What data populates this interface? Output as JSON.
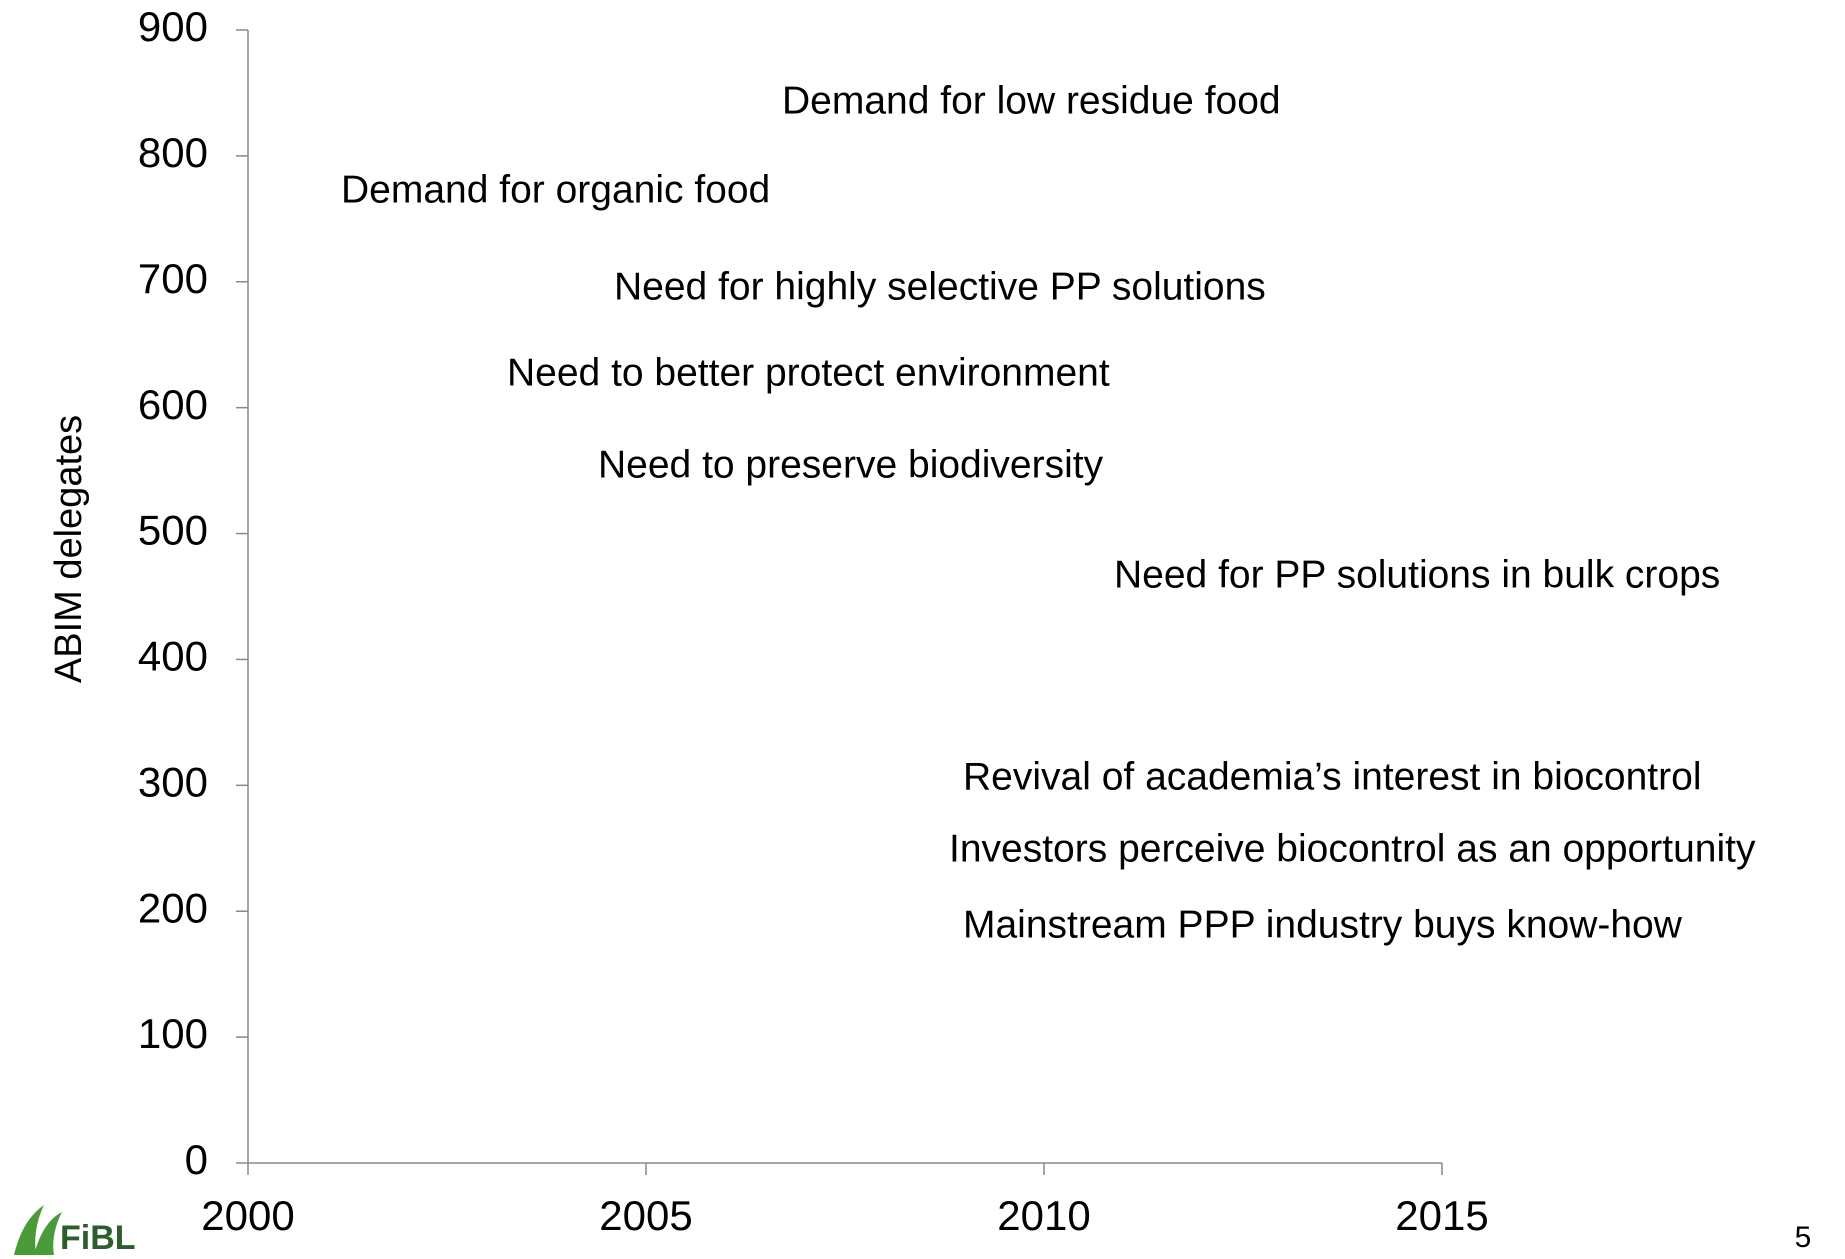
{
  "chart_data": {
    "type": "line",
    "ylabel": "ABIM delegates",
    "xlim": [
      2000,
      2015
    ],
    "xticks": [
      2000,
      2005,
      2010,
      2015
    ],
    "ylim": [
      0,
      900
    ],
    "yticks": [
      0,
      100,
      200,
      300,
      400,
      500,
      600,
      700,
      800,
      900
    ],
    "series": [],
    "annotations": [
      "Demand for low residue food",
      "Demand for organic food",
      "Need for highly selective PP solutions",
      "Need to better protect environment",
      "Need to preserve biodiversity",
      "Need for PP solutions in bulk crops",
      "Revival of academia’s interest in biocontrol",
      "Investors perceive biocontrol as an opportunity",
      "Mainstream PPP industry buys know-how"
    ]
  },
  "logo": "FiBL",
  "page_number": "5"
}
